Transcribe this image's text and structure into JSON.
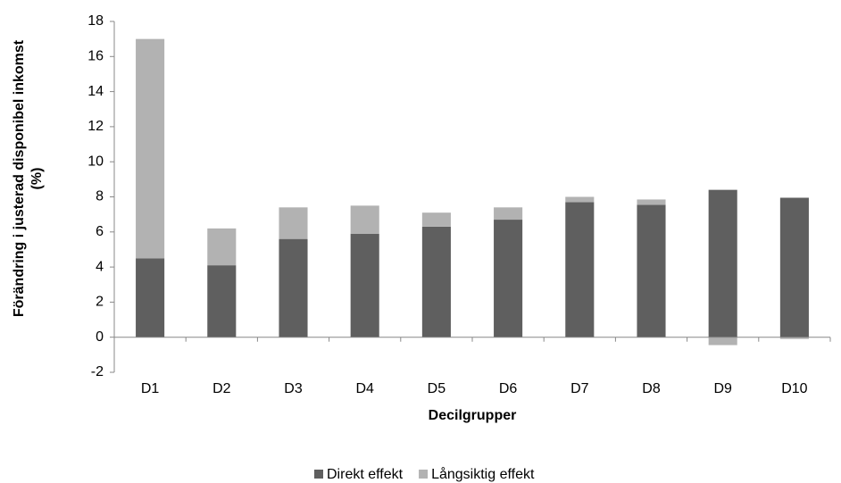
{
  "chart_data": {
    "type": "stacked_bar",
    "y_label": [
      "Förändring i justerad disponibel inkomst",
      "(%)"
    ],
    "x_label": "Decilgrupper",
    "categories": [
      "D1",
      "D2",
      "D3",
      "D4",
      "D5",
      "D6",
      "D7",
      "D8",
      "D9",
      "D10"
    ],
    "series": [
      {
        "name": "Direkt effekt",
        "color": "#5f5f5f",
        "values": [
          4.5,
          4.1,
          5.6,
          5.9,
          6.3,
          6.7,
          7.7,
          7.55,
          8.4,
          7.95
        ]
      },
      {
        "name": "Långsiktig effekt",
        "color": "#b2b2b2",
        "values": [
          12.5,
          2.1,
          1.8,
          1.6,
          0.8,
          0.7,
          0.3,
          0.3,
          -0.45,
          -0.1
        ]
      }
    ],
    "ylim": [
      -2,
      18
    ],
    "yticks": [
      -2,
      0,
      2,
      4,
      6,
      8,
      10,
      12,
      14,
      16,
      18
    ],
    "grid": false,
    "legend": "bottom"
  }
}
